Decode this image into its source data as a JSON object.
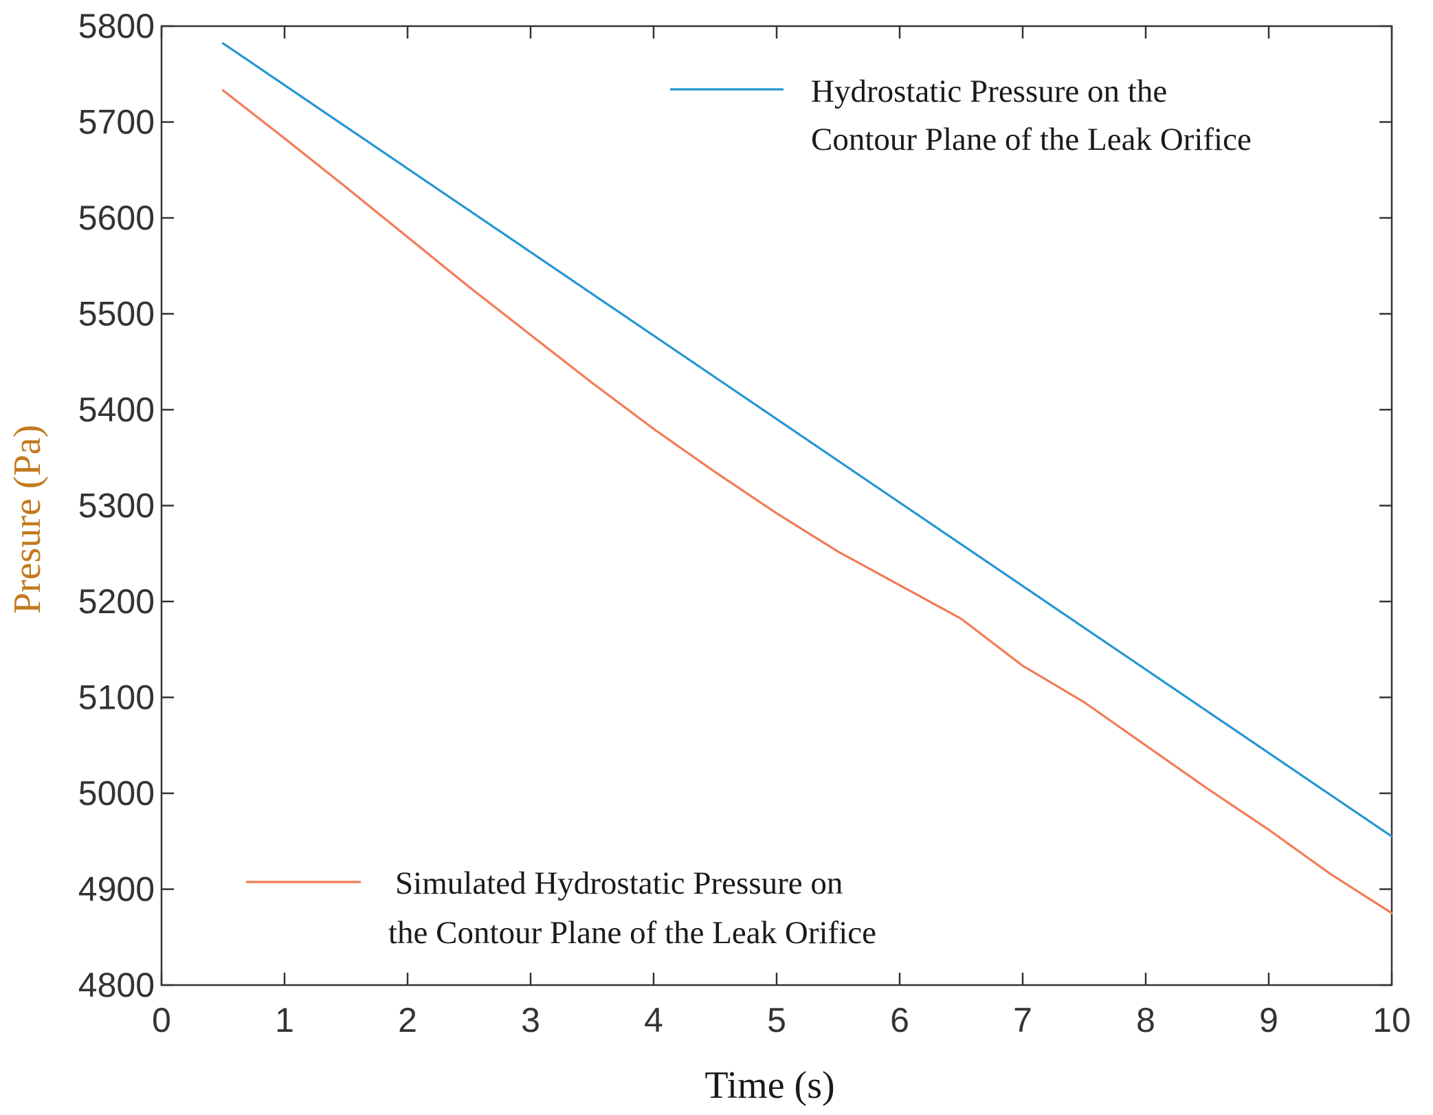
{
  "chart_data": {
    "type": "line",
    "title": "",
    "xlabel": "Time (s)",
    "ylabel": "Presure (Pa)",
    "xlim": [
      0,
      10
    ],
    "ylim": [
      4800,
      5800
    ],
    "xticks": [
      "0",
      "1",
      "2",
      "3",
      "4",
      "5",
      "6",
      "7",
      "8",
      "9",
      "10"
    ],
    "yticks": [
      "4800",
      "4900",
      "5000",
      "5100",
      "5200",
      "5300",
      "5400",
      "5500",
      "5600",
      "5700",
      "5800"
    ],
    "grid": false,
    "series": [
      {
        "name": "Hydrostatic Pressure on the Contour Plane of the Leak Orifice",
        "legend_lines": [
          "Hydrostatic Pressure on the",
          "Contour Plane of the Leak Orifice"
        ],
        "legend_position": "top-right",
        "color": "#2596d1",
        "x": [
          0.5,
          10
        ],
        "y": [
          5782,
          4955
        ]
      },
      {
        "name": "Simulated Hydrostatic Pressure on the Contour Plane of the Leak Orifice",
        "legend_lines": [
          "Simulated Hydrostatic Pressure on",
          "the Contour Plane of the Leak Orifice"
        ],
        "legend_position": "bottom-left",
        "color": "#f27b55",
        "x": [
          0.5,
          1,
          1.5,
          2,
          2.5,
          3,
          3.5,
          4,
          4.5,
          5,
          5.5,
          6,
          6.5,
          7,
          7.5,
          8,
          8.5,
          9,
          9.5,
          10
        ],
        "y": [
          5733,
          5683,
          5632,
          5580,
          5528,
          5478,
          5428,
          5380,
          5335,
          5292,
          5252,
          5217,
          5182,
          5133,
          5095,
          5050,
          5005,
          4962,
          4916,
          4875
        ]
      }
    ]
  },
  "colors": {
    "axis": "#333333",
    "ylabel": "#c27a1e",
    "xlabel": "#1a1a1a"
  }
}
